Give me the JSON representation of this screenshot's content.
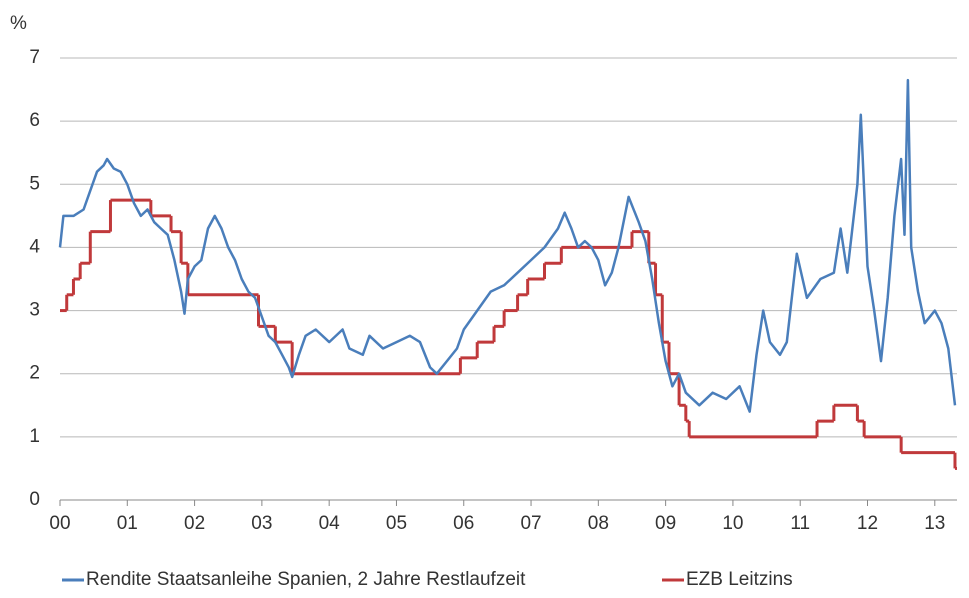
{
  "chart_data": {
    "type": "line",
    "y_unit_label": "%",
    "xlim": [
      2000,
      2013.33
    ],
    "xticks": [
      {
        "value": 2000,
        "label": "00"
      },
      {
        "value": 2001,
        "label": "01"
      },
      {
        "value": 2002,
        "label": "02"
      },
      {
        "value": 2003,
        "label": "03"
      },
      {
        "value": 2004,
        "label": "04"
      },
      {
        "value": 2005,
        "label": "05"
      },
      {
        "value": 2006,
        "label": "06"
      },
      {
        "value": 2007,
        "label": "07"
      },
      {
        "value": 2008,
        "label": "08"
      },
      {
        "value": 2009,
        "label": "09"
      },
      {
        "value": 2010,
        "label": "10"
      },
      {
        "value": 2011,
        "label": "11"
      },
      {
        "value": 2012,
        "label": "12"
      },
      {
        "value": 2013,
        "label": "13"
      }
    ],
    "ylim": [
      0,
      7
    ],
    "yticks": [
      0,
      1,
      2,
      3,
      4,
      5,
      6,
      7
    ],
    "grid": true,
    "legend": "bottom",
    "series": [
      {
        "name": "Rendite Staatsanleihe Spanien, 2 Jahre Restlaufzeit",
        "color": "#4a7ebb",
        "style": "line",
        "x": [
          2000.0,
          2000.05,
          2000.2,
          2000.35,
          2000.45,
          2000.55,
          2000.65,
          2000.7,
          2000.8,
          2000.9,
          2001.0,
          2001.1,
          2001.2,
          2001.3,
          2001.4,
          2001.5,
          2001.6,
          2001.7,
          2001.8,
          2001.85,
          2001.9,
          2002.0,
          2002.1,
          2002.2,
          2002.3,
          2002.4,
          2002.5,
          2002.6,
          2002.7,
          2002.8,
          2002.9,
          2003.0,
          2003.1,
          2003.2,
          2003.3,
          2003.4,
          2003.45,
          2003.55,
          2003.65,
          2003.8,
          2004.0,
          2004.2,
          2004.3,
          2004.5,
          2004.6,
          2004.8,
          2005.0,
          2005.2,
          2005.35,
          2005.5,
          2005.6,
          2005.75,
          2005.9,
          2006.0,
          2006.2,
          2006.4,
          2006.6,
          2006.8,
          2007.0,
          2007.2,
          2007.4,
          2007.5,
          2007.6,
          2007.7,
          2007.8,
          2007.9,
          2008.0,
          2008.1,
          2008.2,
          2008.3,
          2008.45,
          2008.6,
          2008.7,
          2008.8,
          2008.9,
          2009.0,
          2009.1,
          2009.2,
          2009.3,
          2009.5,
          2009.7,
          2009.9,
          2010.1,
          2010.25,
          2010.35,
          2010.45,
          2010.55,
          2010.7,
          2010.8,
          2010.95,
          2011.1,
          2011.3,
          2011.5,
          2011.6,
          2011.7,
          2011.85,
          2011.9,
          2012.0,
          2012.1,
          2012.2,
          2012.3,
          2012.4,
          2012.5,
          2012.55,
          2012.6,
          2012.65,
          2012.75,
          2012.85,
          2013.0,
          2013.1,
          2013.2,
          2013.3
        ],
        "values": [
          4.0,
          4.5,
          4.5,
          4.6,
          4.9,
          5.2,
          5.3,
          5.4,
          5.25,
          5.2,
          5.0,
          4.7,
          4.5,
          4.6,
          4.4,
          4.3,
          4.2,
          3.8,
          3.3,
          2.95,
          3.5,
          3.7,
          3.8,
          4.3,
          4.5,
          4.3,
          4.0,
          3.8,
          3.5,
          3.3,
          3.2,
          2.9,
          2.6,
          2.5,
          2.3,
          2.1,
          1.95,
          2.3,
          2.6,
          2.7,
          2.5,
          2.7,
          2.4,
          2.3,
          2.6,
          2.4,
          2.5,
          2.6,
          2.5,
          2.1,
          2.0,
          2.2,
          2.4,
          2.7,
          3.0,
          3.3,
          3.4,
          3.6,
          3.8,
          4.0,
          4.3,
          4.55,
          4.3,
          4.0,
          4.1,
          4.0,
          3.8,
          3.4,
          3.6,
          4.0,
          4.8,
          4.4,
          4.1,
          3.5,
          2.8,
          2.2,
          1.8,
          2.0,
          1.7,
          1.5,
          1.7,
          1.6,
          1.8,
          1.4,
          2.3,
          3.0,
          2.5,
          2.3,
          2.5,
          3.9,
          3.2,
          3.5,
          3.6,
          4.3,
          3.6,
          5.0,
          6.1,
          3.7,
          3.0,
          2.2,
          3.2,
          4.5,
          5.4,
          4.2,
          6.65,
          4.0,
          3.3,
          2.8,
          3.0,
          2.8,
          2.4,
          1.5
        ]
      },
      {
        "name": "EZB Leitzins",
        "color": "#c0393b",
        "style": "step",
        "x": [
          2000.0,
          2000.1,
          2000.2,
          2000.3,
          2000.45,
          2000.75,
          2001.35,
          2001.65,
          2001.8,
          2001.9,
          2002.95,
          2003.2,
          2003.45,
          2005.95,
          2006.2,
          2006.45,
          2006.6,
          2006.8,
          2006.95,
          2007.2,
          2007.45,
          2008.5,
          2008.75,
          2008.85,
          2008.95,
          2009.05,
          2009.2,
          2009.3,
          2009.35,
          2011.25,
          2011.5,
          2011.85,
          2011.95,
          2012.5,
          2013.3
        ],
        "values": [
          3.0,
          3.25,
          3.5,
          3.75,
          4.25,
          4.75,
          4.5,
          4.25,
          3.75,
          3.25,
          2.75,
          2.5,
          2.0,
          2.25,
          2.5,
          2.75,
          3.0,
          3.25,
          3.5,
          3.75,
          4.0,
          4.25,
          3.75,
          3.25,
          2.5,
          2.0,
          1.5,
          1.25,
          1.0,
          1.25,
          1.5,
          1.25,
          1.0,
          0.75,
          0.5
        ]
      }
    ]
  }
}
